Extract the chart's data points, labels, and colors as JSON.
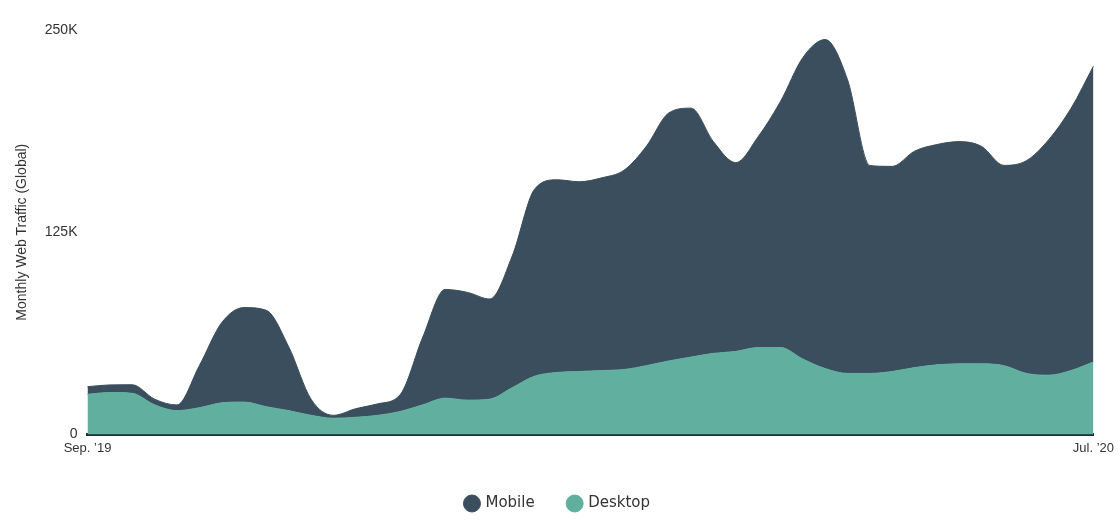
{
  "chart_data": {
    "type": "area",
    "stacked": true,
    "ylabel": "Monthly Web Traffic (Global)",
    "categories": [
      "Sep. ’19",
      null,
      null,
      null,
      null,
      null,
      null,
      null,
      null,
      null,
      null,
      null,
      null,
      null,
      null,
      null,
      null,
      null,
      null,
      null,
      null,
      null,
      null,
      null,
      null,
      null,
      null,
      null,
      null,
      null,
      null,
      null,
      null,
      null,
      null,
      null,
      null,
      null,
      null,
      null,
      null,
      null,
      null,
      null,
      null,
      "Jul. ’20"
    ],
    "series": [
      {
        "name": "Desktop",
        "color": "#61af9e",
        "values": [
          24.8,
          25.9,
          25.4,
          18.3,
          14.7,
          16.5,
          19.5,
          20.0,
          17.1,
          14.7,
          11.8,
          10.0,
          10.6,
          11.8,
          14.2,
          18.3,
          22.4,
          21.2,
          21.8,
          28.9,
          36.0,
          38.3,
          38.9,
          39.5,
          40.1,
          42.5,
          45.4,
          47.8,
          50.1,
          51.3,
          53.7,
          53.7,
          46.6,
          40.7,
          37.7,
          37.7,
          38.9,
          41.3,
          43.0,
          43.6,
          43.6,
          42.5,
          37.7,
          36.6,
          39.5,
          44.8
        ]
      },
      {
        "name": "Mobile",
        "color": "#3a4e5d",
        "values": [
          4.7,
          4.7,
          5.3,
          3.5,
          3.5,
          25.9,
          49.5,
          58.4,
          59.6,
          39.5,
          10.0,
          1.8,
          5.3,
          7.1,
          10.6,
          41.9,
          67.2,
          66.6,
          61.9,
          81.4,
          115.6,
          119.1,
          117.3,
          119.1,
          123.2,
          135.6,
          153.3,
          153.9,
          130.9,
          116.7,
          130.3,
          152.1,
          186.3,
          203.4,
          181.6,
          128.5,
          126.8,
          133.8,
          136.2,
          137.4,
          134.4,
          123.8,
          131.5,
          145.6,
          162.1,
          182.8
        ]
      }
    ],
    "ylim": [
      0,
      250
    ],
    "yticks": [
      {
        "value": 0,
        "label": "0"
      },
      {
        "value": 125,
        "label": "125K"
      },
      {
        "value": 250,
        "label": "250K"
      }
    ],
    "grid": false,
    "legend": "bottom",
    "marker": "none"
  }
}
